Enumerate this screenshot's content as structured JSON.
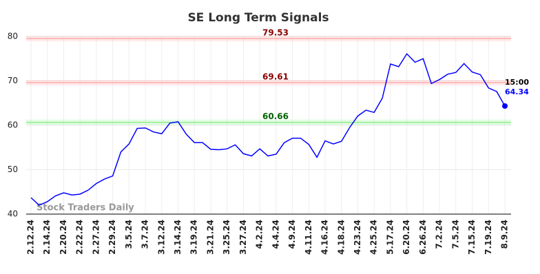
{
  "chart_data": {
    "type": "line",
    "title": "SE Long Term Signals",
    "categories": [
      "2.12.24",
      null,
      "2.14.24",
      null,
      "2.20.24",
      null,
      "2.22.24",
      null,
      "2.27.24",
      null,
      "2.29.24",
      null,
      "3.5.24",
      null,
      "3.7.24",
      null,
      "3.12.24",
      null,
      "3.14.24",
      null,
      "3.19.24",
      null,
      "3.21.24",
      null,
      "3.25.24",
      null,
      "3.27.24",
      null,
      "4.2.24",
      null,
      "4.4.24",
      null,
      "4.9.24",
      null,
      "4.11.24",
      null,
      "4.16.24",
      null,
      "4.18.24",
      null,
      "4.23.24",
      null,
      "4.25.24",
      null,
      "5.17.24",
      null,
      "6.20.24",
      null,
      "6.26.24",
      null,
      "7.2.24",
      null,
      "7.5.24",
      null,
      "7.15.24",
      null,
      "7.19.24",
      null,
      "8.9.24"
    ],
    "values": [
      43.7,
      42.0,
      42.8,
      44.1,
      44.8,
      44.3,
      44.5,
      45.4,
      46.9,
      47.9,
      48.6,
      54.0,
      55.8,
      59.3,
      59.4,
      58.5,
      58.1,
      60.5,
      60.8,
      58.0,
      56.1,
      56.1,
      54.6,
      54.5,
      54.7,
      55.6,
      53.6,
      53.1,
      54.7,
      53.1,
      53.5,
      56.1,
      57.1,
      57.1,
      55.7,
      52.8,
      56.5,
      55.8,
      56.4,
      59.5,
      62.1,
      63.4,
      62.9,
      66.1,
      73.8,
      73.2,
      76.1,
      74.2,
      75.0,
      69.4,
      70.3,
      71.5,
      71.9,
      73.9,
      72.0,
      71.4,
      68.4,
      67.6,
      64.34
    ],
    "color": "#0000ff",
    "ylim": [
      40,
      80
    ],
    "yticks": [
      40,
      50,
      60,
      70,
      80
    ],
    "grid": true,
    "reference_lines": [
      {
        "value": 79.53,
        "color": "#ffaaaa",
        "label_color": "#8b0000"
      },
      {
        "value": 69.61,
        "color": "#ffaaaa",
        "label_color": "#8b0000"
      },
      {
        "value": 60.66,
        "color": "#90ee90",
        "label_color": "#006400"
      }
    ],
    "last_point_time": "15:00",
    "watermark": "Stock Traders Daily"
  }
}
